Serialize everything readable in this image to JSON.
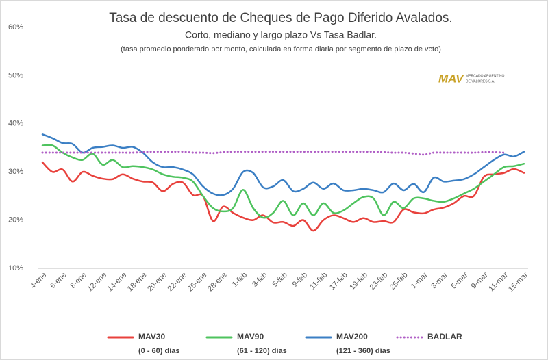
{
  "chart_data": {
    "type": "line",
    "title": "Tasa de descuento de Cheques de Pago Diferido Avalados.",
    "subtitle": "Corto, mediano y largo plazo Vs Tasa Badlar.",
    "note": "(tasa promedio ponderado por monto,  calculada en forma diaria por segmento de plazo de vcto)",
    "logo": {
      "mark": "MAV",
      "text": [
        "MERCADO ARGENTINO",
        "DE VALORES S.A."
      ]
    },
    "categories": [
      "4-ene",
      null,
      "6-ene",
      null,
      "8-ene",
      null,
      "12-ene",
      null,
      "14-ene",
      null,
      "18-ene",
      null,
      "20-ene",
      null,
      "22-ene",
      null,
      "26-ene",
      null,
      "28-ene",
      null,
      "1-feb",
      null,
      "3-feb",
      null,
      "5-feb",
      null,
      "9-feb",
      null,
      "11-feb",
      null,
      "17-feb",
      null,
      "19-feb",
      null,
      "23-feb",
      null,
      "25-feb",
      null,
      "1-mar",
      null,
      "3-mar",
      null,
      "5-mar",
      null,
      "9-mar",
      null,
      "11-mar",
      null,
      "15-mar"
    ],
    "ylim": [
      10,
      60
    ],
    "yticks": [
      {
        "value": 10,
        "label": "10%"
      },
      {
        "value": 20,
        "label": "20%"
      },
      {
        "value": 30,
        "label": "30%"
      },
      {
        "value": 40,
        "label": "40%"
      },
      {
        "value": 50,
        "label": "50%"
      },
      {
        "value": 60,
        "label": "60%"
      }
    ],
    "grid": false,
    "legend": "bottom",
    "series": [
      {
        "name": "MAV30",
        "sublabel": "(0 - 60) días",
        "color": "#e8413c",
        "style": "solid",
        "values": [
          32,
          30,
          30.5,
          28,
          30,
          29.2,
          28.6,
          28.5,
          29.5,
          28.6,
          28,
          27.8,
          26,
          27.5,
          27.8,
          25.2,
          25,
          19.8,
          22.8,
          21.5,
          20.5,
          20,
          21,
          19.5,
          19.6,
          18.8,
          20,
          17.8,
          20,
          21,
          20.4,
          19.6,
          20.4,
          19.6,
          19.8,
          19.6,
          22.2,
          21.6,
          21.4,
          22.2,
          22.6,
          23.5,
          25,
          25,
          29,
          29.5,
          29.8,
          30.6,
          29.8
        ]
      },
      {
        "name": "MAV90",
        "sublabel": "(61 - 120) días",
        "color": "#4ec35e",
        "style": "solid",
        "values": [
          35.5,
          35.5,
          34,
          33,
          32.5,
          33.8,
          31.5,
          32.5,
          31,
          31.2,
          31,
          30.5,
          29.5,
          29,
          28.8,
          28,
          25,
          22.5,
          21.8,
          22.5,
          26.3,
          22.5,
          20.5,
          21.5,
          24,
          21,
          23.5,
          21,
          23.5,
          21.5,
          22,
          23.5,
          24.8,
          24.5,
          21,
          23.8,
          22.5,
          24.5,
          24.5,
          24,
          23.8,
          24.5,
          25.5,
          26.5,
          28,
          29.5,
          31,
          31.2,
          31.7
        ]
      },
      {
        "name": "MAV200",
        "sublabel": "(121 - 360) días",
        "color": "#3b7fc4",
        "style": "solid",
        "values": [
          37.8,
          37,
          36,
          35.8,
          34,
          35,
          35.2,
          35.5,
          35,
          35.2,
          34,
          32,
          31,
          31,
          30.5,
          29.5,
          27,
          25.5,
          25.2,
          26.5,
          30,
          29.8,
          26.8,
          27,
          28.3,
          26,
          26.5,
          27.8,
          26.5,
          27.6,
          26.2,
          26.2,
          26.5,
          26.2,
          25.8,
          27.6,
          26.2,
          27.5,
          25.8,
          28.8,
          28,
          28.2,
          28.5,
          29.5,
          31,
          32.5,
          33.6,
          33.2,
          34.2
        ]
      },
      {
        "name": "BADLAR",
        "color": "#b05fc6",
        "style": "dotted",
        "values": [
          34,
          34,
          34,
          34,
          34,
          34,
          34,
          34,
          34,
          34,
          34.1,
          34.2,
          34.2,
          34.2,
          34.2,
          34,
          34,
          33.9,
          34.1,
          34.2,
          34.2,
          34.2,
          34.2,
          34.2,
          34.2,
          34.2,
          34.2,
          34.2,
          34.2,
          34.2,
          34.2,
          34.2,
          34.2,
          34.2,
          34.1,
          34,
          34,
          33.8,
          33.6,
          34,
          34,
          34,
          34,
          34,
          34.1,
          34.1,
          34,
          null,
          null
        ]
      }
    ]
  }
}
